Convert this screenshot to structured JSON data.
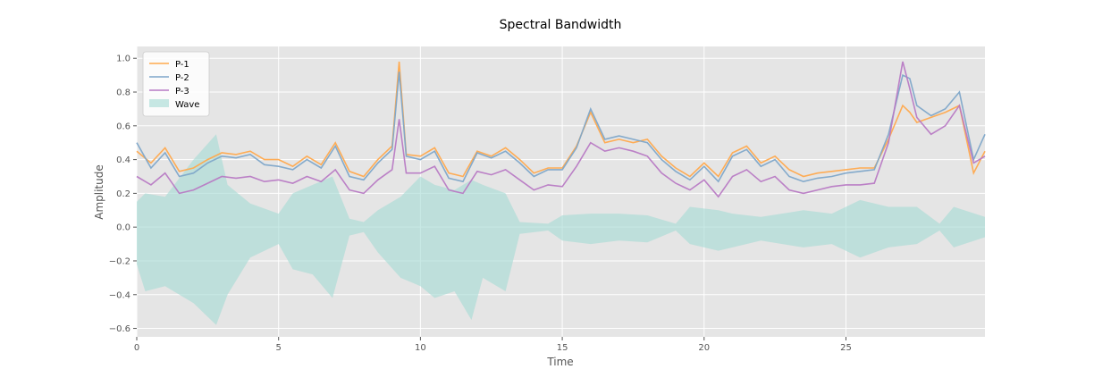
{
  "chart_data": {
    "type": "line",
    "title": "Spectral Bandwidth",
    "xlabel": "Time",
    "ylabel": "Amplitude",
    "xlim": [
      0,
      29.9
    ],
    "ylim": [
      -0.65,
      1.07
    ],
    "xticks": [
      0,
      5,
      10,
      15,
      20,
      25
    ],
    "xtick_labels": [
      "0",
      "5",
      "10",
      "15",
      "20",
      "25"
    ],
    "yticks": [
      -0.6,
      -0.4,
      -0.2,
      0.0,
      0.2,
      0.4,
      0.6,
      0.8,
      1.0
    ],
    "ytick_labels": [
      "−0.6",
      "−0.4",
      "−0.2",
      "0.0",
      "0.2",
      "0.4",
      "0.6",
      "0.8",
      "1.0"
    ],
    "grid": true,
    "legend_position": "top-left",
    "x": [
      0,
      0.5,
      1,
      1.5,
      2,
      2.5,
      3,
      3.5,
      4,
      4.5,
      5,
      5.5,
      6,
      6.5,
      7,
      7.5,
      8,
      8.5,
      9,
      9.25,
      9.5,
      10,
      10.5,
      11,
      11.5,
      12,
      12.5,
      13,
      13.5,
      14,
      14.5,
      15,
      15.5,
      16,
      16.5,
      17,
      17.5,
      18,
      18.5,
      19,
      19.5,
      20,
      20.5,
      21,
      21.5,
      22,
      22.5,
      23,
      23.5,
      24,
      24.5,
      25,
      25.5,
      26,
      26.5,
      27,
      27.25,
      27.5,
      28,
      28.5,
      29,
      29.5,
      29.9
    ],
    "series": [
      {
        "name": "P-1",
        "color": "#ffa94d",
        "values": [
          0.45,
          0.38,
          0.47,
          0.33,
          0.35,
          0.4,
          0.44,
          0.43,
          0.45,
          0.4,
          0.4,
          0.36,
          0.42,
          0.37,
          0.5,
          0.33,
          0.3,
          0.4,
          0.48,
          0.98,
          0.43,
          0.42,
          0.47,
          0.32,
          0.3,
          0.45,
          0.42,
          0.47,
          0.4,
          0.32,
          0.35,
          0.35,
          0.48,
          0.68,
          0.5,
          0.52,
          0.5,
          0.52,
          0.42,
          0.35,
          0.3,
          0.38,
          0.3,
          0.44,
          0.48,
          0.38,
          0.42,
          0.34,
          0.3,
          0.32,
          0.33,
          0.34,
          0.35,
          0.35,
          0.52,
          0.72,
          0.68,
          0.62,
          0.65,
          0.68,
          0.72,
          0.32,
          0.45
        ]
      },
      {
        "name": "P-2",
        "color": "#7ea6c9",
        "values": [
          0.5,
          0.35,
          0.44,
          0.3,
          0.32,
          0.38,
          0.42,
          0.41,
          0.43,
          0.37,
          0.36,
          0.34,
          0.4,
          0.35,
          0.48,
          0.3,
          0.28,
          0.38,
          0.46,
          0.92,
          0.42,
          0.4,
          0.45,
          0.29,
          0.27,
          0.44,
          0.41,
          0.45,
          0.38,
          0.3,
          0.34,
          0.34,
          0.47,
          0.7,
          0.52,
          0.54,
          0.52,
          0.5,
          0.4,
          0.33,
          0.28,
          0.36,
          0.27,
          0.42,
          0.46,
          0.36,
          0.4,
          0.3,
          0.27,
          0.29,
          0.3,
          0.32,
          0.33,
          0.34,
          0.55,
          0.9,
          0.88,
          0.72,
          0.66,
          0.7,
          0.8,
          0.4,
          0.55
        ]
      },
      {
        "name": "P-3",
        "color": "#b87ac4",
        "values": [
          0.3,
          0.25,
          0.32,
          0.2,
          0.22,
          0.26,
          0.3,
          0.29,
          0.3,
          0.27,
          0.28,
          0.26,
          0.3,
          0.27,
          0.34,
          0.22,
          0.2,
          0.28,
          0.34,
          0.64,
          0.32,
          0.32,
          0.36,
          0.22,
          0.2,
          0.33,
          0.31,
          0.34,
          0.28,
          0.22,
          0.25,
          0.24,
          0.36,
          0.5,
          0.45,
          0.47,
          0.45,
          0.42,
          0.32,
          0.26,
          0.22,
          0.28,
          0.18,
          0.3,
          0.34,
          0.27,
          0.3,
          0.22,
          0.2,
          0.22,
          0.24,
          0.25,
          0.25,
          0.26,
          0.5,
          0.98,
          0.82,
          0.65,
          0.55,
          0.6,
          0.72,
          0.38,
          0.42
        ]
      }
    ],
    "area_series": {
      "name": "Wave",
      "color": "#a3dbd3",
      "envelope": [
        {
          "x": 0,
          "low": -0.22,
          "high": 0.15
        },
        {
          "x": 0.3,
          "low": -0.38,
          "high": 0.2
        },
        {
          "x": 1,
          "low": -0.35,
          "high": 0.18
        },
        {
          "x": 2,
          "low": -0.45,
          "high": 0.4
        },
        {
          "x": 2.8,
          "low": -0.58,
          "high": 0.55
        },
        {
          "x": 3.2,
          "low": -0.4,
          "high": 0.25
        },
        {
          "x": 4,
          "low": -0.18,
          "high": 0.14
        },
        {
          "x": 5,
          "low": -0.1,
          "high": 0.08
        },
        {
          "x": 5.5,
          "low": -0.25,
          "high": 0.2
        },
        {
          "x": 6.2,
          "low": -0.28,
          "high": 0.25
        },
        {
          "x": 6.9,
          "low": -0.42,
          "high": 0.3
        },
        {
          "x": 7.5,
          "low": -0.05,
          "high": 0.05
        },
        {
          "x": 8,
          "low": -0.03,
          "high": 0.03
        },
        {
          "x": 8.5,
          "low": -0.15,
          "high": 0.1
        },
        {
          "x": 9.3,
          "low": -0.3,
          "high": 0.18
        },
        {
          "x": 10,
          "low": -0.35,
          "high": 0.3
        },
        {
          "x": 10.5,
          "low": -0.42,
          "high": 0.25
        },
        {
          "x": 11.2,
          "low": -0.38,
          "high": 0.22
        },
        {
          "x": 11.8,
          "low": -0.55,
          "high": 0.28
        },
        {
          "x": 12.2,
          "low": -0.3,
          "high": 0.25
        },
        {
          "x": 13,
          "low": -0.38,
          "high": 0.2
        },
        {
          "x": 13.5,
          "low": -0.04,
          "high": 0.03
        },
        {
          "x": 14.5,
          "low": -0.02,
          "high": 0.02
        },
        {
          "x": 15,
          "low": -0.08,
          "high": 0.07
        },
        {
          "x": 16,
          "low": -0.1,
          "high": 0.08
        },
        {
          "x": 17,
          "low": -0.08,
          "high": 0.08
        },
        {
          "x": 18,
          "low": -0.09,
          "high": 0.07
        },
        {
          "x": 19,
          "low": -0.02,
          "high": 0.02
        },
        {
          "x": 19.5,
          "low": -0.1,
          "high": 0.12
        },
        {
          "x": 20.5,
          "low": -0.14,
          "high": 0.1
        },
        {
          "x": 21,
          "low": -0.12,
          "high": 0.08
        },
        {
          "x": 22,
          "low": -0.08,
          "high": 0.06
        },
        {
          "x": 23.5,
          "low": -0.12,
          "high": 0.1
        },
        {
          "x": 24.5,
          "low": -0.1,
          "high": 0.08
        },
        {
          "x": 25.5,
          "low": -0.18,
          "high": 0.16
        },
        {
          "x": 26.5,
          "low": -0.12,
          "high": 0.12
        },
        {
          "x": 27.5,
          "low": -0.1,
          "high": 0.12
        },
        {
          "x": 28.3,
          "low": -0.02,
          "high": 0.02
        },
        {
          "x": 28.8,
          "low": -0.12,
          "high": 0.12
        },
        {
          "x": 29.9,
          "low": -0.06,
          "high": 0.06
        }
      ]
    }
  }
}
